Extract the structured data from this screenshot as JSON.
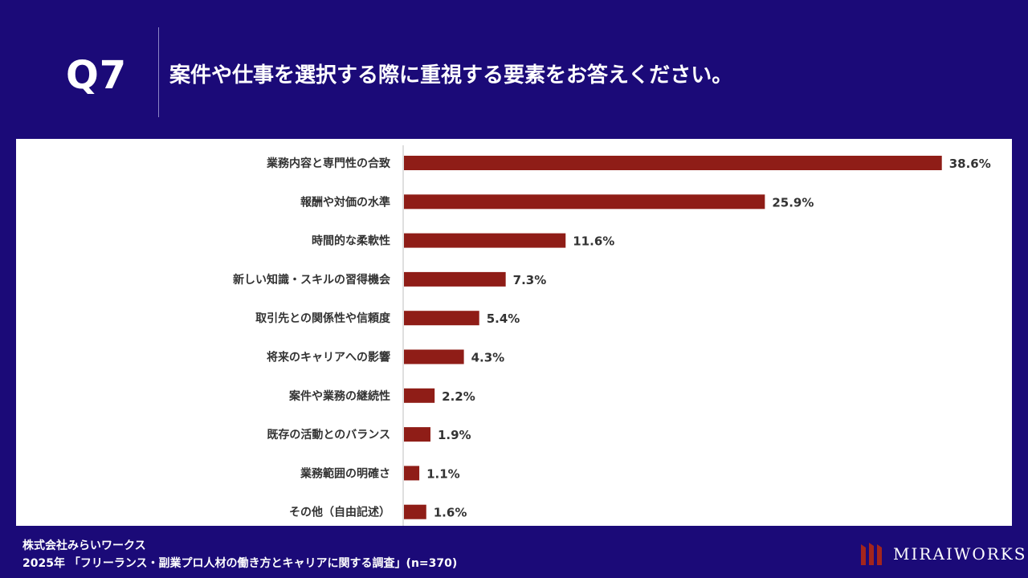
{
  "header": {
    "q_label": "Q7",
    "question": "案件や仕事を選択する際に重視する要素をお答えください。"
  },
  "chart_data": {
    "type": "bar",
    "orientation": "horizontal",
    "categories": [
      "業務内容と専門性の合致",
      "報酬や対価の水準",
      "時間的な柔軟性",
      "新しい知識・スキルの習得機会",
      "取引先との関係性や信頼度",
      "将来のキャリアへの影響",
      "案件や業務の継続性",
      "既存の活動とのバランス",
      "業務範囲の明確さ",
      "その他（自由記述）"
    ],
    "values": [
      38.6,
      25.9,
      11.6,
      7.3,
      5.4,
      4.3,
      2.2,
      1.9,
      1.1,
      1.6
    ],
    "value_labels": [
      "38.6%",
      "25.9%",
      "11.6%",
      "7.3%",
      "5.4%",
      "4.3%",
      "2.2%",
      "1.9%",
      "1.1%",
      "1.6%"
    ],
    "xlim": [
      0,
      40
    ],
    "bar_color": "#8f1d17",
    "grid": false
  },
  "footer": {
    "company": "株式会社みらいワークス",
    "source": "2025年 「フリーランス・副業プロ人材の働き方とキャリアに関する調査」(n=370)"
  },
  "logo": {
    "text": "MIRAIWORKS",
    "icon": "miraiworks-logo-icon"
  },
  "colors": {
    "background": "#1b0a78",
    "panel": "#ffffff",
    "bar": "#8f1d17",
    "logo_mark": "#a3251d"
  }
}
